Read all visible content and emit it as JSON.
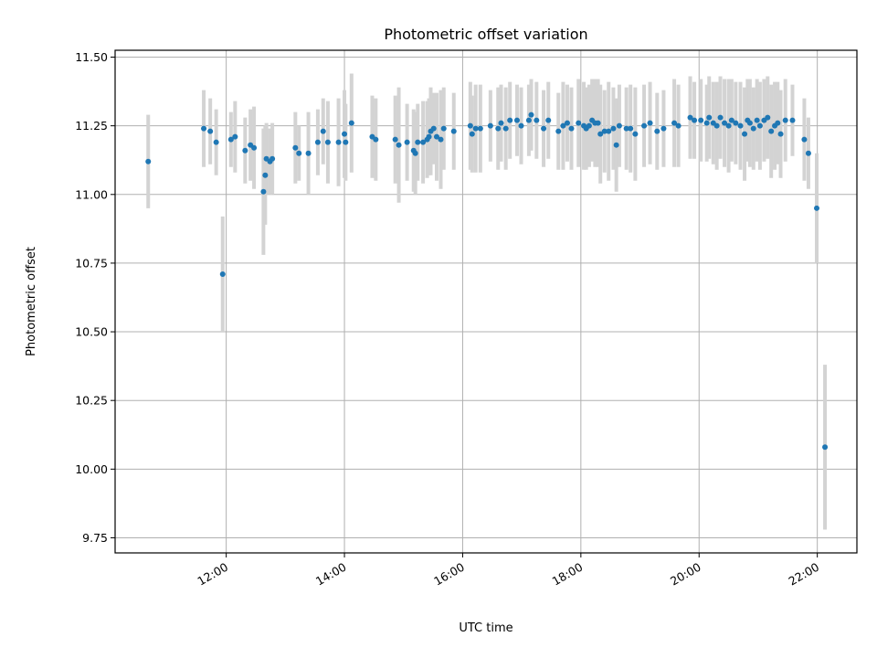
{
  "chart_data": {
    "type": "scatter",
    "title": "Photometric offset variation",
    "xlabel": "UTC time",
    "ylabel": "Photometric offset",
    "xlim": [
      10.12,
      22.67
    ],
    "ylim": [
      9.695,
      11.525
    ],
    "grid": true,
    "x_ticks": [
      {
        "v": 12,
        "label": "12:00"
      },
      {
        "v": 14,
        "label": "14:00"
      },
      {
        "v": 16,
        "label": "16:00"
      },
      {
        "v": 18,
        "label": "18:00"
      },
      {
        "v": 20,
        "label": "20:00"
      },
      {
        "v": 22,
        "label": "22:00"
      }
    ],
    "y_ticks": [
      {
        "v": 9.75,
        "label": "9.75"
      },
      {
        "v": 10.0,
        "label": "10.00"
      },
      {
        "v": 10.25,
        "label": "10.25"
      },
      {
        "v": 10.5,
        "label": "10.50"
      },
      {
        "v": 10.75,
        "label": "10.75"
      },
      {
        "v": 11.0,
        "label": "11.00"
      },
      {
        "v": 11.25,
        "label": "11.25"
      },
      {
        "v": 11.5,
        "label": "11.50"
      }
    ],
    "series": [
      {
        "name": "photometric offset",
        "color": "#1f77b4",
        "errorbar_color": "#d3d3d3",
        "points": [
          [
            10.68,
            11.12,
            0.17
          ],
          [
            11.62,
            11.24,
            0.14
          ],
          [
            11.73,
            11.23,
            0.12
          ],
          [
            11.83,
            11.19,
            0.12
          ],
          [
            11.94,
            10.71,
            0.21
          ],
          [
            12.08,
            11.2,
            0.1
          ],
          [
            12.15,
            11.21,
            0.13
          ],
          [
            12.32,
            11.16,
            0.12
          ],
          [
            12.41,
            11.18,
            0.13
          ],
          [
            12.47,
            11.17,
            0.15
          ],
          [
            12.63,
            11.01,
            0.23
          ],
          [
            12.66,
            11.07,
            0.18
          ],
          [
            12.68,
            11.13,
            0.13
          ],
          [
            12.74,
            11.12,
            0.12
          ],
          [
            12.78,
            11.13,
            0.13
          ],
          [
            13.17,
            11.17,
            0.13
          ],
          [
            13.23,
            11.15,
            0.1
          ],
          [
            13.39,
            11.15,
            0.15
          ],
          [
            13.55,
            11.19,
            0.12
          ],
          [
            13.64,
            11.23,
            0.12
          ],
          [
            13.72,
            11.19,
            0.15
          ],
          [
            13.9,
            11.19,
            0.16
          ],
          [
            14.0,
            11.22,
            0.16
          ],
          [
            14.02,
            11.19,
            0.14
          ],
          [
            14.12,
            11.26,
            0.18
          ],
          [
            14.47,
            11.21,
            0.15
          ],
          [
            14.53,
            11.2,
            0.15
          ],
          [
            14.86,
            11.2,
            0.16
          ],
          [
            14.92,
            11.18,
            0.21
          ],
          [
            15.06,
            11.19,
            0.14
          ],
          [
            15.17,
            11.16,
            0.15
          ],
          [
            15.2,
            11.15,
            0.15
          ],
          [
            15.24,
            11.19,
            0.14
          ],
          [
            15.33,
            11.19,
            0.15
          ],
          [
            15.4,
            11.2,
            0.14
          ],
          [
            15.43,
            11.21,
            0.14
          ],
          [
            15.46,
            11.23,
            0.16
          ],
          [
            15.51,
            11.24,
            0.13
          ],
          [
            15.56,
            11.21,
            0.16
          ],
          [
            15.63,
            11.2,
            0.18
          ],
          [
            15.68,
            11.24,
            0.15
          ],
          [
            15.85,
            11.23,
            0.14
          ],
          [
            16.13,
            11.25,
            0.16
          ],
          [
            16.16,
            11.22,
            0.14
          ],
          [
            16.22,
            11.24,
            0.16
          ],
          [
            16.3,
            11.24,
            0.16
          ],
          [
            16.47,
            11.25,
            0.13
          ],
          [
            16.6,
            11.24,
            0.15
          ],
          [
            16.65,
            11.26,
            0.14
          ],
          [
            16.73,
            11.24,
            0.15
          ],
          [
            16.8,
            11.27,
            0.14
          ],
          [
            16.92,
            11.27,
            0.13
          ],
          [
            16.99,
            11.25,
            0.14
          ],
          [
            17.12,
            11.27,
            0.13
          ],
          [
            17.16,
            11.29,
            0.13
          ],
          [
            17.25,
            11.27,
            0.14
          ],
          [
            17.37,
            11.24,
            0.14
          ],
          [
            17.45,
            11.27,
            0.14
          ],
          [
            17.62,
            11.23,
            0.14
          ],
          [
            17.7,
            11.25,
            0.16
          ],
          [
            17.77,
            11.26,
            0.14
          ],
          [
            17.84,
            11.24,
            0.15
          ],
          [
            17.96,
            11.26,
            0.16
          ],
          [
            18.05,
            11.25,
            0.16
          ],
          [
            18.09,
            11.24,
            0.15
          ],
          [
            18.14,
            11.25,
            0.15
          ],
          [
            18.19,
            11.27,
            0.15
          ],
          [
            18.24,
            11.26,
            0.16
          ],
          [
            18.29,
            11.26,
            0.16
          ],
          [
            18.33,
            11.22,
            0.18
          ],
          [
            18.4,
            11.23,
            0.15
          ],
          [
            18.47,
            11.23,
            0.18
          ],
          [
            18.55,
            11.24,
            0.15
          ],
          [
            18.6,
            11.18,
            0.17
          ],
          [
            18.65,
            11.25,
            0.15
          ],
          [
            18.77,
            11.24,
            0.15
          ],
          [
            18.84,
            11.24,
            0.16
          ],
          [
            18.92,
            11.22,
            0.17
          ],
          [
            19.07,
            11.25,
            0.15
          ],
          [
            19.17,
            11.26,
            0.15
          ],
          [
            19.29,
            11.23,
            0.14
          ],
          [
            19.4,
            11.24,
            0.14
          ],
          [
            19.58,
            11.26,
            0.16
          ],
          [
            19.65,
            11.25,
            0.15
          ],
          [
            19.85,
            11.28,
            0.15
          ],
          [
            19.92,
            11.27,
            0.14
          ],
          [
            20.03,
            11.27,
            0.15
          ],
          [
            20.13,
            11.26,
            0.14
          ],
          [
            20.17,
            11.28,
            0.15
          ],
          [
            20.24,
            11.26,
            0.15
          ],
          [
            20.3,
            11.25,
            0.16
          ],
          [
            20.36,
            11.28,
            0.15
          ],
          [
            20.43,
            11.26,
            0.16
          ],
          [
            20.5,
            11.25,
            0.17
          ],
          [
            20.55,
            11.27,
            0.15
          ],
          [
            20.62,
            11.26,
            0.15
          ],
          [
            20.7,
            11.25,
            0.16
          ],
          [
            20.77,
            11.22,
            0.17
          ],
          [
            20.82,
            11.27,
            0.15
          ],
          [
            20.86,
            11.26,
            0.16
          ],
          [
            20.92,
            11.24,
            0.15
          ],
          [
            20.98,
            11.27,
            0.15
          ],
          [
            21.03,
            11.25,
            0.16
          ],
          [
            21.1,
            11.27,
            0.15
          ],
          [
            21.16,
            11.28,
            0.15
          ],
          [
            21.22,
            11.23,
            0.17
          ],
          [
            21.28,
            11.25,
            0.16
          ],
          [
            21.33,
            11.26,
            0.15
          ],
          [
            21.38,
            11.22,
            0.16
          ],
          [
            21.46,
            11.27,
            0.15
          ],
          [
            21.58,
            11.27,
            0.13
          ],
          [
            21.78,
            11.2,
            0.15
          ],
          [
            21.85,
            11.15,
            0.13
          ],
          [
            21.99,
            10.95,
            0.2
          ],
          [
            22.13,
            10.08,
            0.3
          ]
        ]
      }
    ]
  }
}
